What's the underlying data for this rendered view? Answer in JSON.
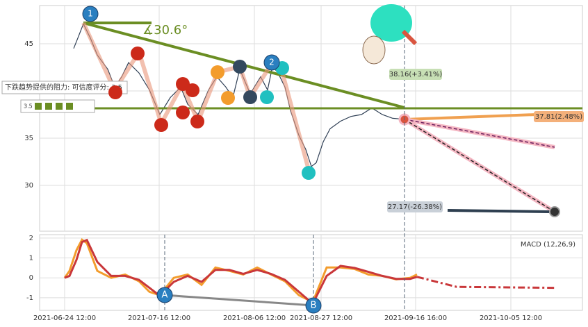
{
  "chart_data": [
    {
      "type": "line",
      "xlim": [
        0,
        156.2
      ],
      "xticks": [
        {
          "value": 7.2,
          "label": "2021-06-24 12:00"
        },
        {
          "value": 34.4,
          "label": "2021-07-16 12:00"
        },
        {
          "value": 61.8,
          "label": "2021-08-06 12:00"
        },
        {
          "value": 81,
          "label": "2021-08-27 12:00"
        },
        {
          "value": 108.2,
          "label": "2021-09-16 16:00"
        },
        {
          "value": 135.6,
          "label": "2021-10-05 12:00"
        }
      ],
      "ylim": [
        25.15,
        49.04
      ],
      "yticks": [
        30,
        35,
        40,
        45
      ],
      "grid": true,
      "series": [
        {
          "color": "#2f3f55",
          "x": [
            9.8,
            11,
            12.6,
            14.6,
            16.6,
            19.6,
            21.6,
            23.6,
            25.6,
            28.6,
            31.6,
            34.6,
            37.6,
            40.6,
            42.6,
            45.6,
            48.6,
            51,
            53.6,
            55.6,
            57.6,
            60.6,
            63.6,
            65.6,
            67,
            68.6,
            70.6,
            72.2,
            74.6,
            76.6,
            78.2,
            79.6,
            81.6,
            83.6,
            86.6,
            89.6,
            92.6,
            95.6,
            98.6,
            101.6,
            105
          ],
          "values": [
            44.5,
            45.6,
            47.1,
            45.6,
            43.8,
            42.3,
            40.4,
            41.5,
            43,
            41.9,
            40.1,
            37.5,
            39.3,
            40.4,
            38.6,
            37.5,
            40.1,
            41.5,
            40.4,
            39.3,
            42.3,
            39.7,
            41.5,
            40.1,
            42.6,
            41.9,
            40.4,
            37.9,
            35.3,
            33.8,
            32,
            32.4,
            34.6,
            36,
            36.8,
            37.3,
            37.5,
            38.2,
            37.5,
            37.1,
            37
          ]
        }
      ]
    },
    {
      "type": "line",
      "title": "MACD (12,26,9)",
      "xlim": [
        0,
        156.2
      ],
      "ylim": [
        -1.63,
        2.17
      ],
      "yticks": [
        -1,
        0,
        1,
        2
      ],
      "grid": true,
      "series": [
        {
          "color": "#f39c2c",
          "x": [
            7.2,
            8.6,
            10.6,
            12.2,
            13.6,
            16.6,
            20.6,
            24.6,
            28.6,
            31.6,
            34.6,
            38.6,
            42.6,
            46.6,
            50.6,
            54.6,
            58.6,
            62.6,
            66.6,
            70.6,
            74.6,
            78.6,
            82.6,
            86.6,
            90.6,
            94.6,
            98.6,
            102.6,
            106.6,
            108.6
          ],
          "values": [
            0,
            0.35,
            1.39,
            1.92,
            1.74,
            0.35,
            0,
            0.17,
            -0.17,
            -0.7,
            -0.87,
            0,
            0.17,
            -0.35,
            0.52,
            0.35,
            0.17,
            0.52,
            0.17,
            -0.17,
            -0.87,
            -1.22,
            0.52,
            0.52,
            0.45,
            0.17,
            0.1,
            -0.07,
            0,
            0.17
          ]
        },
        {
          "color": "#c9373a",
          "x": [
            7.2,
            8.6,
            10.6,
            12.2,
            13.6,
            16.6,
            20.6,
            24.6,
            28.6,
            31.6,
            34.6,
            38.6,
            42.6,
            46.6,
            50.6,
            54.6,
            58.6,
            62.6,
            66.6,
            70.6,
            74.6,
            78.6,
            82.6,
            86.6,
            90.6,
            94.6,
            98.6,
            102.6,
            106.6,
            108.6
          ],
          "values": [
            0,
            0.1,
            0.9,
            1.8,
            1.9,
            0.8,
            0.1,
            0.1,
            -0.1,
            -0.5,
            -0.9,
            -0.2,
            0.1,
            -0.2,
            0.4,
            0.4,
            0.2,
            0.4,
            0.2,
            -0.1,
            -0.7,
            -1.3,
            0.1,
            0.6,
            0.5,
            0.3,
            0.1,
            -0.05,
            -0.05,
            0.05
          ]
        },
        {
          "color": "#c9373a",
          "dashed": true,
          "x": [
            108.6,
            120,
            148.6
          ],
          "values": [
            0.05,
            -0.45,
            -0.5
          ]
        }
      ]
    }
  ],
  "annotations": {
    "resistance": "下跌趋势提供的阻力: 可信度评分: 3.5",
    "score": "3.5",
    "angle": "∡30.6°",
    "targets": [
      "38.16(+3.41%)",
      "37.81(2.48%)",
      "27.17(-26.38%)"
    ],
    "markers": [
      "1",
      "2",
      "A",
      "B"
    ]
  }
}
